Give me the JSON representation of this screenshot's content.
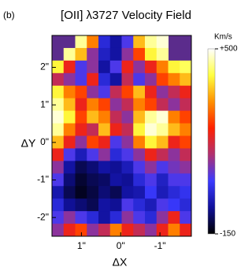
{
  "chart_data": {
    "type": "heatmap",
    "panel_label": "(b)",
    "title": "[OII] λ3727  Velocity Field",
    "x_label": "ΔX",
    "y_label": "ΔY",
    "xlim": [
      1.75,
      -1.8
    ],
    "ylim": [
      -2.5,
      2.85
    ],
    "xticks": [
      {
        "value": 1,
        "label": "1\""
      },
      {
        "value": 0,
        "label": "0\""
      },
      {
        "value": -1,
        "label": "-1\""
      }
    ],
    "yticks": [
      {
        "value": 2,
        "label": "2\""
      },
      {
        "value": 1,
        "label": "1\""
      },
      {
        "value": 0,
        "label": "0\""
      },
      {
        "value": -1,
        "label": "-1\""
      },
      {
        "value": -2,
        "label": "-2\""
      }
    ],
    "background": "#5b2c8c",
    "colormap": [
      "#000000",
      "#10109a",
      "#3a3aff",
      "#b03070",
      "#ff2000",
      "#ff9000",
      "#ffff40",
      "#ffffff"
    ],
    "colorbar": {
      "label": "Km/s",
      "lim": [
        -150,
        500
      ],
      "ticks": [
        {
          "value": 500,
          "label": "+500"
        },
        -150
      ]
    },
    "z": [
      [
        null,
        null,
        450,
        300,
        0,
        -50,
        50,
        350,
        450,
        480,
        null,
        null
      ],
      [
        null,
        450,
        350,
        100,
        -20,
        -50,
        100,
        250,
        400,
        450,
        null,
        null
      ],
      [
        400,
        200,
        50,
        100,
        -50,
        50,
        200,
        100,
        200,
        300,
        400,
        420
      ],
      [
        150,
        100,
        50,
        200,
        0,
        -50,
        150,
        50,
        100,
        250,
        300,
        350
      ],
      [
        400,
        300,
        250,
        100,
        50,
        150,
        250,
        350,
        200,
        100,
        150,
        200
      ],
      [
        450,
        350,
        200,
        300,
        250,
        100,
        150,
        300,
        250,
        150,
        100,
        150
      ],
      [
        480,
        400,
        250,
        350,
        300,
        150,
        100,
        350,
        450,
        480,
        300,
        250
      ],
      [
        450,
        300,
        200,
        150,
        350,
        200,
        150,
        400,
        480,
        450,
        350,
        300
      ],
      [
        350,
        200,
        100,
        250,
        200,
        50,
        100,
        300,
        400,
        350,
        200,
        250
      ],
      [
        200,
        50,
        -30,
        50,
        100,
        0,
        50,
        100,
        200,
        150,
        100,
        150
      ],
      [
        100,
        -50,
        -100,
        -80,
        -50,
        -60,
        -30,
        50,
        100,
        50,
        80,
        100
      ],
      [
        50,
        -80,
        -120,
        -100,
        -90,
        -50,
        -60,
        0,
        50,
        -20,
        50,
        50
      ],
      [
        -40,
        -100,
        -130,
        -110,
        -80,
        -100,
        -50,
        -40,
        30,
        -30,
        0,
        20
      ],
      [
        0,
        -60,
        -80,
        -100,
        -50,
        -60,
        50,
        0,
        -30,
        50,
        30,
        0
      ],
      [
        50,
        100,
        50,
        0,
        -50,
        0,
        100,
        50,
        0,
        100,
        200,
        50
      ],
      [
        100,
        200,
        250,
        100,
        150,
        300,
        200,
        150,
        100,
        200,
        300,
        200
      ]
    ]
  }
}
